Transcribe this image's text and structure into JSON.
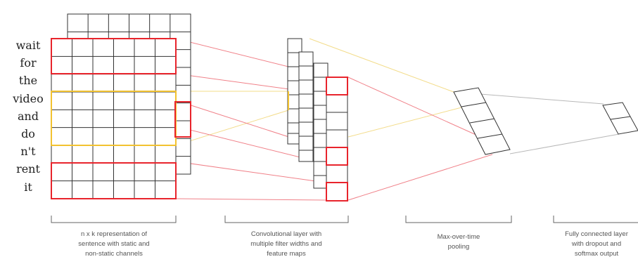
{
  "words": [
    "wait",
    "for",
    "the",
    "video",
    "and",
    "do",
    "n't",
    "rent",
    "it"
  ],
  "captions": [
    [
      "n x k representation of",
      "sentence with static and",
      "non-static channels"
    ],
    [
      "Convolutional layer with",
      "multiple filter widths and",
      "feature maps"
    ],
    [
      "Max-over-time",
      "pooling"
    ],
    [
      "Fully connected layer",
      "with dropout and",
      "softmax output"
    ]
  ],
  "colors": {
    "grid": "#333333",
    "red": "#e8242c",
    "yellow": "#f2c230",
    "line_red": "#f08088",
    "line_yellow": "#f3dc8a",
    "line_gray": "#b8b8b8",
    "bracket": "#666666"
  }
}
